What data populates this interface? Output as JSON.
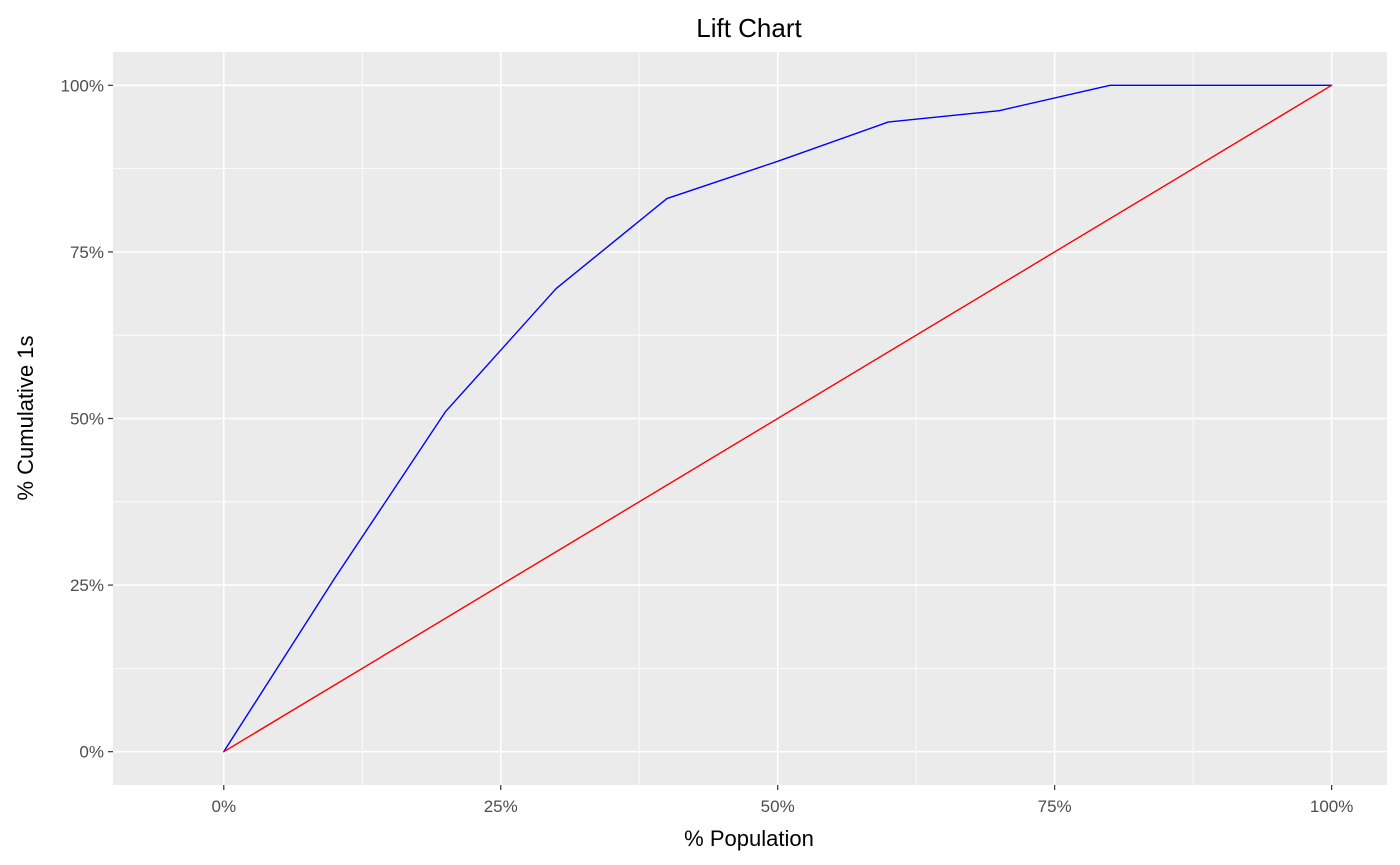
{
  "chart_data": {
    "type": "line",
    "title": "Lift Chart",
    "xlabel": "% Population",
    "ylabel": "% Cumulative 1s",
    "xlim": [
      -0.1,
      1.05
    ],
    "ylim": [
      -0.05,
      1.05
    ],
    "x_ticks": [
      0,
      0.25,
      0.5,
      0.75,
      1.0
    ],
    "x_tick_labels": [
      "0%",
      "25%",
      "50%",
      "75%",
      "100%"
    ],
    "y_ticks": [
      0,
      0.25,
      0.5,
      0.75,
      1.0
    ],
    "y_tick_labels": [
      "0%",
      "25%",
      "50%",
      "75%",
      "100%"
    ],
    "grid": true,
    "panel_background": "#EBEBEB",
    "grid_color": "#FFFFFF",
    "series": [
      {
        "color": "#0000FF",
        "x": [
          0,
          0.1,
          0.2,
          0.3,
          0.4,
          0.5,
          0.6,
          0.7,
          0.8,
          0.9,
          1.0
        ],
        "y": [
          0,
          0.26,
          0.51,
          0.695,
          0.83,
          0.886,
          0.945,
          0.962,
          1.0,
          1.0,
          1.0
        ]
      },
      {
        "color": "#FF0000",
        "x": [
          0,
          1.0
        ],
        "y": [
          0,
          1.0
        ]
      }
    ]
  }
}
